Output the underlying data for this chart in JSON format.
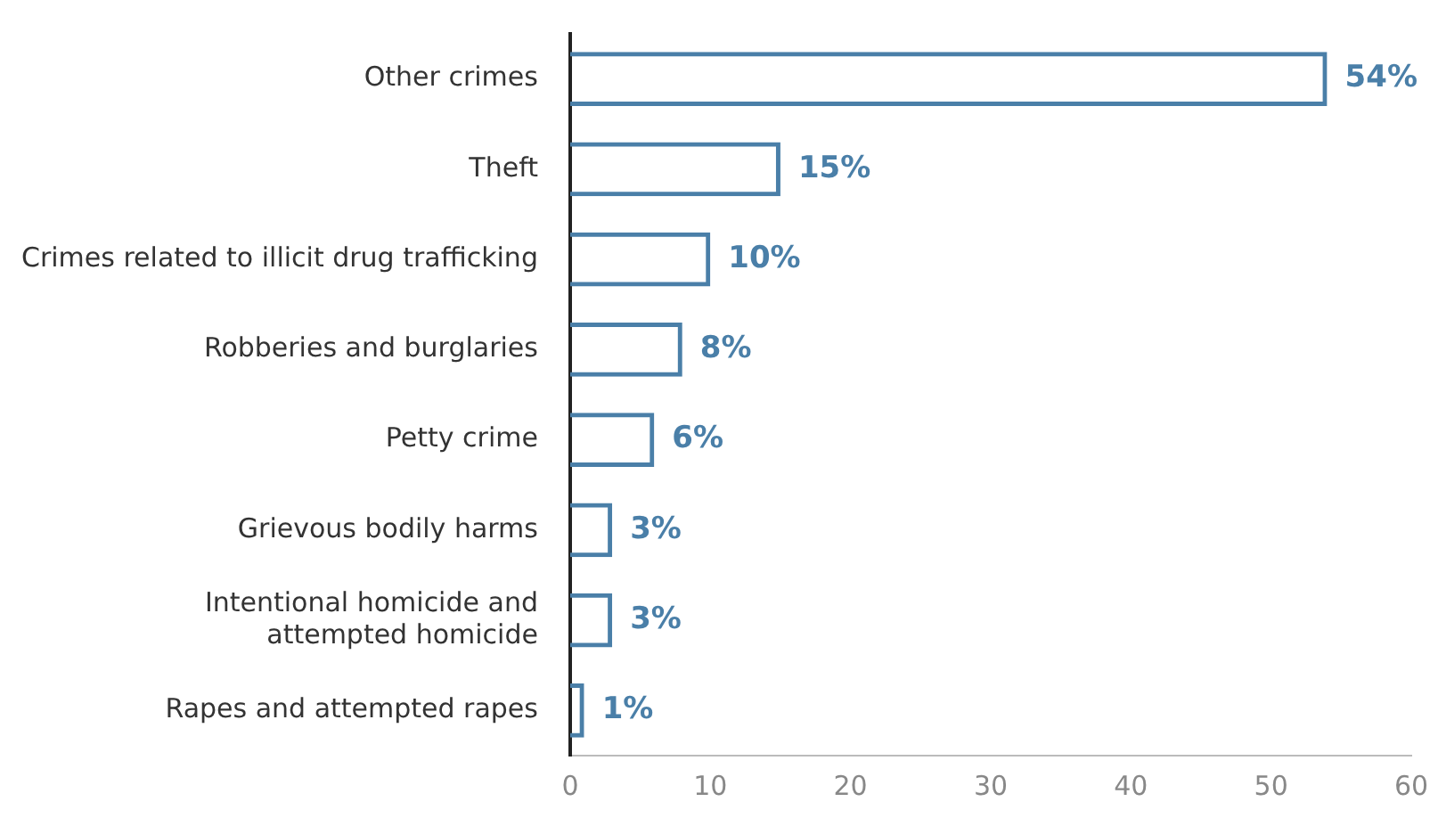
{
  "chart_data": {
    "type": "bar",
    "orientation": "horizontal",
    "categories": [
      "Other crimes",
      "Theft",
      "Crimes related to illicit drug trafficking",
      "Robberies and burglaries",
      "Petty crime",
      "Grievous bodily harms",
      "Intentional homicide and\nattempted homicide",
      "Rapes and attempted rapes"
    ],
    "values": [
      54,
      15,
      10,
      8,
      6,
      3,
      3,
      1
    ],
    "value_labels": [
      "54%",
      "15%",
      "10%",
      "8%",
      "6%",
      "3%",
      "3%",
      "1%"
    ],
    "color": "#4a7fa8",
    "xlim": [
      0,
      60
    ],
    "xticks": [
      0,
      10,
      20,
      30,
      40,
      50,
      60
    ],
    "grid": false,
    "legend": false
  }
}
